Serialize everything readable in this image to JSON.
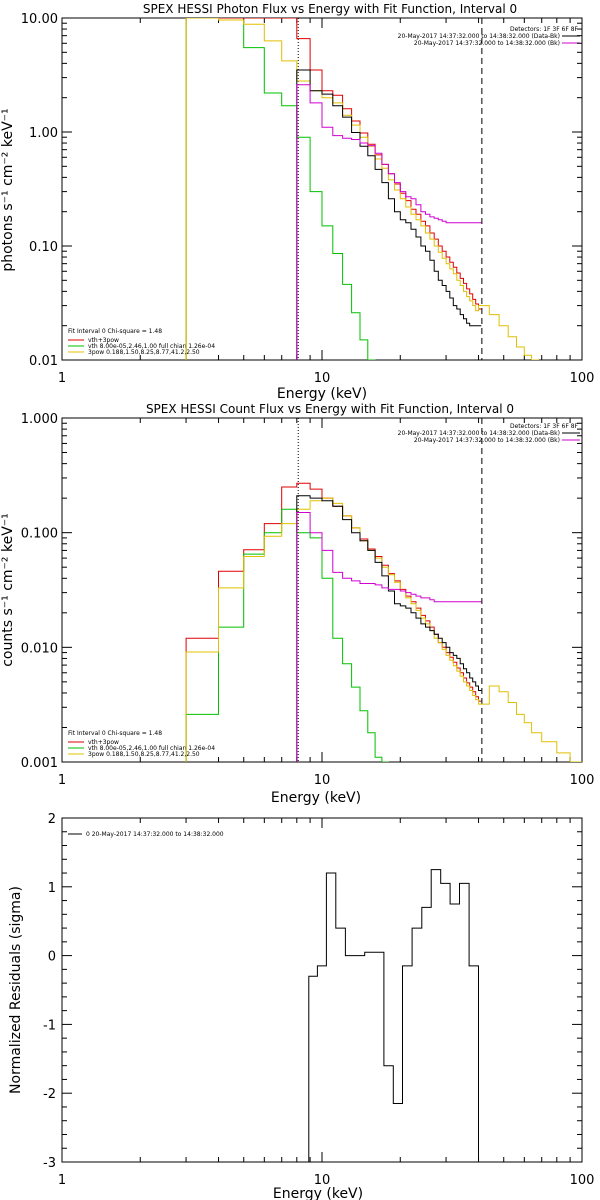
{
  "panels": {
    "photon": {
      "title": "SPEX HESSI Photon Flux vs Energy with Fit Function, Interval 0",
      "xlabel": "Energy (keV)",
      "ylabel": "photons s⁻¹ cm⁻² keV⁻¹",
      "legend_right": [
        "Detectors: 1F 3F 6F 8F",
        "20-May-2017 14:37:32.000 to 14:38:32.000 (Data-Bk)",
        "20-May-2017 14:37:32.000 to 14:38:32.000 (Bk)"
      ],
      "legend_left": [
        "Fit Interval 0   Chi-square = 1.48",
        "vth+3pow",
        "vth 8.00e-05,2.46,1.00  full chian 1.26e-04",
        "3pow 0.188,1.50,8.25,8.77,41.2,2.50"
      ]
    },
    "count": {
      "title": "SPEX HESSI Count Flux vs Energy with Fit Function, Interval 0",
      "xlabel": "Energy (keV)",
      "ylabel": "counts s⁻¹ cm⁻² keV⁻¹",
      "legend_right": [
        "Detectors: 1F 3F 6F 8F",
        "20-May-2017 14:37:32.000 to 14:38:32.000 (Data-Bk)",
        "20-May-2017 14:37:32.000 to 14:38:32.000 (Bk)"
      ],
      "legend_left": [
        "Fit Interval 0   Chi-square = 1.48",
        "vth+3pow",
        "vth 8.00e-05,2.46,1.00  full chian 1.26e-04",
        "3pow 0.188,1.50,8.25,8.77,41.2,2.50"
      ]
    },
    "resid": {
      "title": "",
      "xlabel": "Energy (keV)",
      "ylabel": "Normalized Residuals (sigma)",
      "legend": "0  20-May-2017 14:37:32.000 to 14:38:32.000"
    }
  },
  "colors": {
    "data": "#000000",
    "background": "#d000d0",
    "total_fit": "#e00000",
    "thermal": "#00c000",
    "powerlaw": "#e0c000",
    "axes": "#000000"
  },
  "chart_data": [
    {
      "type": "line",
      "title": "SPEX HESSI Photon Flux vs Energy with Fit Function, Interval 0",
      "xlabel": "Energy (keV)",
      "ylabel": "photons s⁻¹ cm⁻² keV⁻¹",
      "xscale": "log",
      "yscale": "log",
      "xlim": [
        1,
        100
      ],
      "ylim": [
        0.01,
        10
      ],
      "xticks": [
        "1",
        "10",
        "100"
      ],
      "yticks": [
        "0.01",
        "0.10",
        "1.00",
        "10.00"
      ],
      "vlines": [
        {
          "x": 8.1,
          "style": "dotted"
        },
        {
          "x": 41.2,
          "style": "dashed"
        }
      ],
      "series": [
        {
          "name": "vth+3pow",
          "color": "#e00000",
          "x": [
            3,
            4,
            5,
            6,
            7,
            8,
            9,
            10,
            11,
            12,
            13,
            14,
            15,
            16,
            17,
            18,
            19,
            20,
            21,
            22,
            23,
            24,
            25,
            26,
            27,
            28,
            29,
            30,
            31,
            32,
            33,
            34,
            35,
            36,
            37,
            38,
            39,
            40
          ],
          "values": [
            10,
            10,
            10,
            10,
            10,
            6.6,
            3.5,
            2.3,
            2.1,
            1.6,
            1.25,
            0.98,
            0.78,
            0.63,
            0.52,
            0.43,
            0.35,
            0.29,
            0.25,
            0.21,
            0.19,
            0.165,
            0.15,
            0.13,
            0.115,
            0.1,
            0.09,
            0.08,
            0.072,
            0.065,
            0.058,
            0.052,
            0.047,
            0.042,
            0.038,
            0.034,
            0.031,
            0.028
          ]
        },
        {
          "name": "vth",
          "color": "#00c000",
          "x": [
            3,
            4,
            5,
            6,
            7,
            8,
            9,
            10,
            11,
            12,
            13,
            14,
            15
          ],
          "values": [
            10,
            9.6,
            5.5,
            2.2,
            1.7,
            0.9,
            0.3,
            0.15,
            0.086,
            0.046,
            0.026,
            0.015,
            0.0085
          ]
        },
        {
          "name": "3pow",
          "color": "#e0c000",
          "x": [
            3,
            4,
            5,
            6,
            7,
            8,
            9,
            10,
            11,
            12,
            13,
            14,
            15,
            16,
            17,
            18,
            19,
            20,
            21,
            22,
            23,
            24,
            25,
            26,
            27,
            28,
            29,
            30,
            31,
            32,
            33,
            34,
            35,
            36,
            37,
            38,
            39,
            40,
            44,
            48,
            52,
            56,
            60,
            64
          ],
          "values": [
            10,
            9.6,
            8.8,
            6.3,
            4.2,
            2.8,
            2.3,
            2.0,
            1.8,
            1.4,
            1.15,
            0.9,
            0.75,
            0.58,
            0.48,
            0.38,
            0.31,
            0.26,
            0.22,
            0.19,
            0.17,
            0.15,
            0.13,
            0.115,
            0.1,
            0.088,
            0.078,
            0.07,
            0.063,
            0.057,
            0.05,
            0.045,
            0.04,
            0.036,
            0.033,
            0.03,
            0.027,
            0.03,
            0.025,
            0.02,
            0.016,
            0.013,
            0.011,
            0.01
          ]
        },
        {
          "name": "Data-Bk",
          "color": "#000000",
          "x": [
            8,
            9,
            10,
            11,
            12,
            13,
            14,
            15,
            16,
            17,
            18,
            19,
            20,
            21,
            22,
            23,
            24,
            25,
            26,
            27,
            28,
            29,
            30,
            31,
            32,
            33,
            34,
            35,
            36,
            37,
            38,
            39,
            40
          ],
          "values": [
            3.5,
            2.3,
            2.15,
            1.7,
            1.35,
            0.99,
            0.75,
            0.62,
            0.47,
            0.36,
            0.26,
            0.2,
            0.17,
            0.16,
            0.14,
            0.12,
            0.1,
            0.09,
            0.075,
            0.06,
            0.05,
            0.045,
            0.04,
            0.035,
            0.03,
            0.028,
            0.025,
            0.023,
            0.021,
            0.02,
            0.02,
            0.02,
            0.02
          ]
        },
        {
          "name": "Bk",
          "color": "#d000d0",
          "x": [
            8,
            9,
            10,
            11,
            12,
            13,
            14,
            15,
            16,
            17,
            18,
            19,
            20,
            21,
            22,
            23,
            24,
            25,
            26,
            27,
            28,
            29,
            30,
            31,
            32,
            33,
            34,
            35,
            36,
            37,
            38,
            39,
            40
          ],
          "values": [
            2.6,
            1.8,
            1.1,
            0.93,
            0.88,
            0.86,
            0.8,
            0.76,
            0.65,
            0.52,
            0.43,
            0.36,
            0.3,
            0.27,
            0.26,
            0.23,
            0.2,
            0.19,
            0.18,
            0.175,
            0.17,
            0.165,
            0.16,
            0.16,
            0.16,
            0.16,
            0.16,
            0.16,
            0.16,
            0.16,
            0.16,
            0.16,
            0.16
          ]
        }
      ]
    },
    {
      "type": "line",
      "title": "SPEX HESSI Count Flux vs Energy with Fit Function, Interval 0",
      "xlabel": "Energy (keV)",
      "ylabel": "counts s⁻¹ cm⁻² keV⁻¹",
      "xscale": "log",
      "yscale": "log",
      "xlim": [
        1,
        100
      ],
      "ylim": [
        0.001,
        1
      ],
      "xticks": [
        "1",
        "10",
        "100"
      ],
      "yticks": [
        "0.001",
        "0.010",
        "0.100",
        "1.000"
      ],
      "vlines": [
        {
          "x": 8.1,
          "style": "dotted"
        },
        {
          "x": 41.2,
          "style": "dashed"
        }
      ],
      "series": [
        {
          "name": "vth+3pow",
          "color": "#e00000",
          "x": [
            3,
            4,
            5,
            6,
            7,
            8,
            9,
            10,
            11,
            12,
            13,
            14,
            15,
            16,
            17,
            18,
            19,
            20,
            21,
            22,
            23,
            24,
            25,
            26,
            27,
            28,
            29,
            30,
            31,
            32,
            33,
            34,
            35,
            36,
            37,
            38,
            39,
            40
          ],
          "values": [
            0.012,
            0.046,
            0.071,
            0.12,
            0.25,
            0.27,
            0.24,
            0.2,
            0.17,
            0.14,
            0.11,
            0.088,
            0.072,
            0.062,
            0.052,
            0.044,
            0.038,
            0.032,
            0.028,
            0.025,
            0.022,
            0.019,
            0.017,
            0.015,
            0.013,
            0.011,
            0.01,
            0.009,
            0.0082,
            0.0074,
            0.0066,
            0.006,
            0.0054,
            0.0049,
            0.0045,
            0.0041,
            0.0037,
            0.0034
          ]
        },
        {
          "name": "vth",
          "color": "#00c000",
          "x": [
            3,
            4,
            5,
            6,
            7,
            8,
            9,
            10,
            11,
            12,
            13,
            14,
            15,
            16,
            17
          ],
          "values": [
            0.0026,
            0.015,
            0.065,
            0.1,
            0.16,
            0.1,
            0.09,
            0.04,
            0.012,
            0.0072,
            0.0045,
            0.0028,
            0.0018,
            0.0011,
            0.001
          ]
        },
        {
          "name": "3pow",
          "color": "#e0c000",
          "x": [
            3,
            4,
            5,
            6,
            7,
            8,
            9,
            10,
            11,
            12,
            13,
            14,
            15,
            16,
            17,
            18,
            19,
            20,
            21,
            22,
            23,
            24,
            25,
            26,
            27,
            28,
            29,
            30,
            31,
            32,
            33,
            34,
            35,
            36,
            37,
            38,
            39,
            40,
            44,
            48,
            52,
            56,
            60,
            64,
            70,
            80,
            90
          ],
          "values": [
            0.0091,
            0.033,
            0.062,
            0.093,
            0.12,
            0.16,
            0.19,
            0.2,
            0.18,
            0.14,
            0.11,
            0.085,
            0.07,
            0.06,
            0.05,
            0.043,
            0.037,
            0.031,
            0.027,
            0.024,
            0.021,
            0.018,
            0.016,
            0.014,
            0.012,
            0.011,
            0.0096,
            0.0085,
            0.0077,
            0.0069,
            0.0062,
            0.0056,
            0.005,
            0.0046,
            0.0042,
            0.0038,
            0.0035,
            0.0032,
            0.0046,
            0.0041,
            0.0033,
            0.0026,
            0.0022,
            0.0018,
            0.0015,
            0.0012,
            0.001
          ]
        },
        {
          "name": "Data-Bk",
          "color": "#000000",
          "x": [
            8,
            9,
            10,
            11,
            12,
            13,
            14,
            15,
            16,
            17,
            18,
            19,
            20,
            21,
            22,
            23,
            24,
            25,
            26,
            27,
            28,
            29,
            30,
            31,
            32,
            33,
            34,
            35,
            36,
            37,
            38,
            39,
            40
          ],
          "values": [
            0.21,
            0.2,
            0.19,
            0.17,
            0.13,
            0.1,
            0.085,
            0.07,
            0.055,
            0.042,
            0.031,
            0.024,
            0.023,
            0.022,
            0.02,
            0.018,
            0.016,
            0.015,
            0.014,
            0.013,
            0.012,
            0.011,
            0.01,
            0.009,
            0.0085,
            0.008,
            0.0072,
            0.0065,
            0.006,
            0.0054,
            0.005,
            0.0046,
            0.0042
          ]
        },
        {
          "name": "Bk",
          "color": "#d000d0",
          "x": [
            8,
            9,
            10,
            11,
            12,
            13,
            14,
            15,
            16,
            17,
            18,
            19,
            20,
            21,
            22,
            23,
            24,
            25,
            26,
            27,
            28,
            29,
            30,
            31,
            32,
            33,
            34,
            35,
            36,
            37,
            38,
            39,
            40
          ],
          "values": [
            0.15,
            0.1,
            0.07,
            0.045,
            0.04,
            0.038,
            0.036,
            0.036,
            0.035,
            0.033,
            0.032,
            0.032,
            0.031,
            0.03,
            0.029,
            0.028,
            0.027,
            0.027,
            0.026,
            0.025,
            0.025,
            0.025,
            0.025,
            0.025,
            0.025,
            0.025,
            0.025,
            0.025,
            0.025,
            0.025,
            0.025,
            0.025,
            0.025
          ]
        }
      ]
    },
    {
      "type": "line",
      "title": "",
      "xlabel": "Energy (keV)",
      "ylabel": "Normalized Residuals (sigma)",
      "xscale": "log",
      "yscale": "linear",
      "xlim": [
        1,
        100
      ],
      "ylim": [
        -3,
        2
      ],
      "xticks": [
        "1",
        "10",
        "100"
      ],
      "yticks": [
        "-3",
        "-2",
        "-1",
        "0",
        "1",
        "2"
      ],
      "series": [
        {
          "name": "0  20-May-2017 14:37:32.000 to 14:38:32.000",
          "color": "#000000",
          "x": [
            8.1,
            8.9,
            9.6,
            10.4,
            11.3,
            12.3,
            13.4,
            14.6,
            15.9,
            17.3,
            18.8,
            20.4,
            22.2,
            24.2,
            26.3,
            28.6,
            31.1,
            33.8,
            36.8,
            40.0,
            41.2
          ],
          "values": [
            -3,
            -0.3,
            -0.15,
            1.2,
            0.4,
            0.0,
            0.0,
            0.05,
            0.05,
            -1.6,
            -2.15,
            -0.15,
            0.4,
            0.7,
            1.25,
            1.05,
            0.75,
            1.05,
            -0.15,
            -3,
            -3
          ]
        }
      ]
    }
  ]
}
